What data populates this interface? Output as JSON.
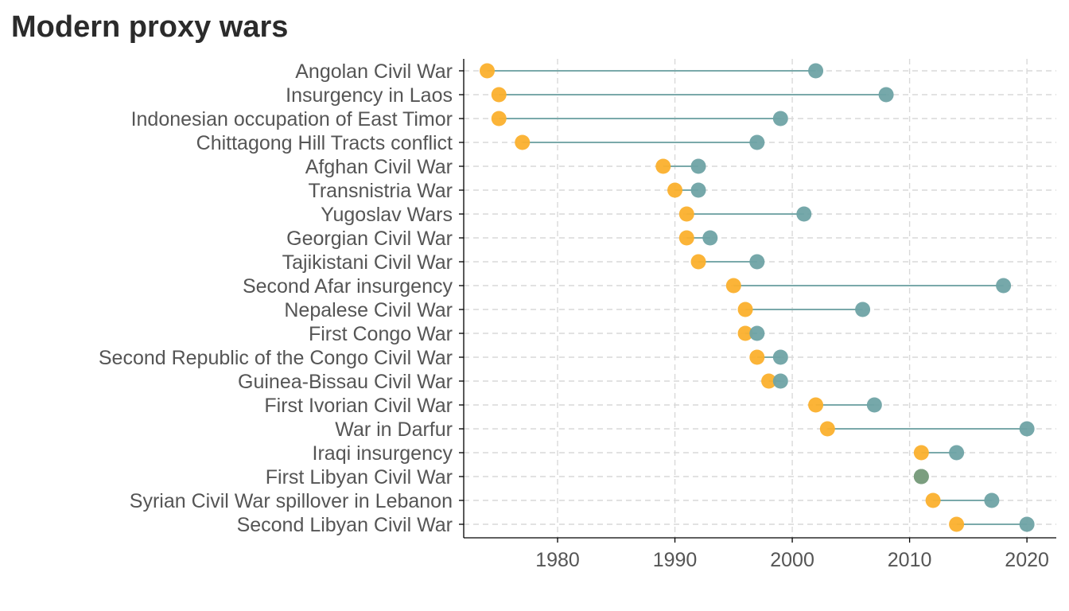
{
  "chart_data": {
    "type": "dumbbell",
    "title": "Modern proxy wars",
    "xlabel": "",
    "ylabel": "",
    "xlim": [
      1972,
      2022.5
    ],
    "xticks": [
      1980,
      1990,
      2000,
      2010,
      2020
    ],
    "grid": true,
    "legend": "none",
    "colors": {
      "start": "#fbb02d",
      "end": "#6fa3a5",
      "segment": "#7aa9aa",
      "overlap": "#7a9e7e"
    },
    "series": [
      {
        "field": "start",
        "color": "#fbb02d"
      },
      {
        "field": "end",
        "color": "#6fa3a5"
      }
    ],
    "wars": [
      {
        "name": "Angolan Civil War",
        "start": 1974,
        "end": 2002
      },
      {
        "name": "Insurgency in Laos",
        "start": 1975,
        "end": 2008
      },
      {
        "name": "Indonesian occupation of East Timor",
        "start": 1975,
        "end": 1999
      },
      {
        "name": "Chittagong Hill Tracts conflict",
        "start": 1977,
        "end": 1997
      },
      {
        "name": "Afghan Civil War",
        "start": 1989,
        "end": 1992
      },
      {
        "name": "Transnistria War",
        "start": 1990,
        "end": 1992
      },
      {
        "name": "Yugoslav Wars",
        "start": 1991,
        "end": 2001
      },
      {
        "name": "Georgian Civil War",
        "start": 1991,
        "end": 1993
      },
      {
        "name": "Tajikistani Civil War",
        "start": 1992,
        "end": 1997
      },
      {
        "name": "Second Afar insurgency",
        "start": 1995,
        "end": 2018
      },
      {
        "name": "Nepalese Civil War",
        "start": 1996,
        "end": 2006
      },
      {
        "name": "First Congo War",
        "start": 1996,
        "end": 1997
      },
      {
        "name": "Second Republic of the Congo Civil War",
        "start": 1997,
        "end": 1999
      },
      {
        "name": "Guinea-Bissau Civil War",
        "start": 1998,
        "end": 1999
      },
      {
        "name": "First Ivorian Civil War",
        "start": 2002,
        "end": 2007
      },
      {
        "name": "War in Darfur",
        "start": 2003,
        "end": 2020
      },
      {
        "name": "Iraqi insurgency",
        "start": 2011,
        "end": 2014
      },
      {
        "name": "First Libyan Civil War",
        "start": 2011,
        "end": 2011
      },
      {
        "name": "Syrian Civil War spillover in Lebanon",
        "start": 2012,
        "end": 2017
      },
      {
        "name": "Second Libyan Civil War",
        "start": 2014,
        "end": 2020
      }
    ]
  }
}
